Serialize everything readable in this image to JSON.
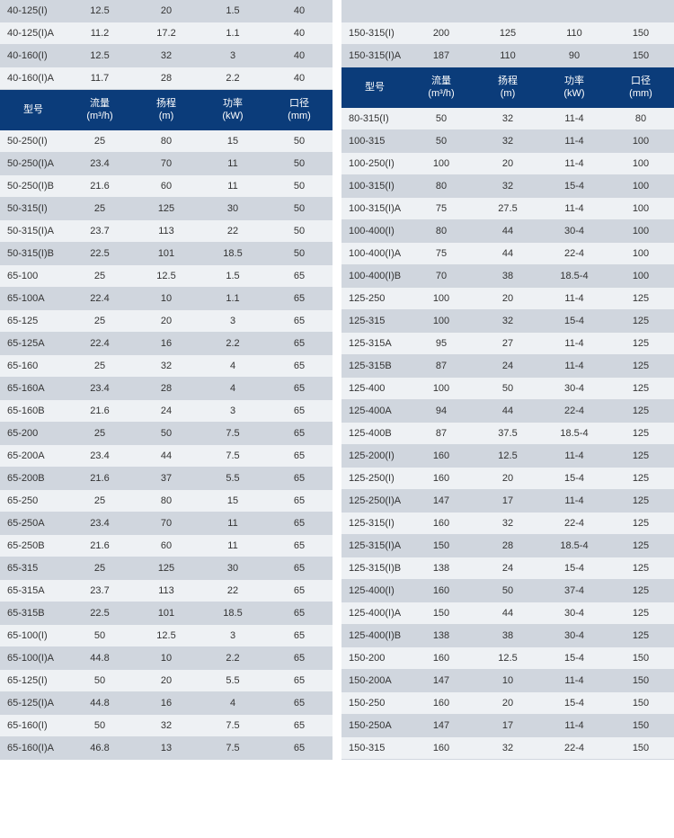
{
  "colors": {
    "header_bg": "#0b3c7a",
    "header_text": "#ffffff",
    "row_odd": "#d0d6de",
    "row_even": "#eef1f4",
    "text": "#333333",
    "border": "#d0d6de"
  },
  "columns": [
    {
      "label": "型号",
      "sub": ""
    },
    {
      "label": "流量",
      "sub": "(m³/h)"
    },
    {
      "label": "扬程",
      "sub": "(m)"
    },
    {
      "label": "功率",
      "sub": "(kW)"
    },
    {
      "label": "口径",
      "sub": "(mm)"
    }
  ],
  "left_top_rows": [
    [
      "40-125(I)",
      "12.5",
      "20",
      "1.5",
      "40"
    ],
    [
      "40-125(I)A",
      "11.2",
      "17.2",
      "1.1",
      "40"
    ],
    [
      "40-160(I)",
      "12.5",
      "32",
      "3",
      "40"
    ],
    [
      "40-160(I)A",
      "11.7",
      "28",
      "2.2",
      "40"
    ]
  ],
  "left_bottom_rows": [
    [
      "50-250(I)",
      "25",
      "80",
      "15",
      "50"
    ],
    [
      "50-250(I)A",
      "23.4",
      "70",
      "11",
      "50"
    ],
    [
      "50-250(I)B",
      "21.6",
      "60",
      "11",
      "50"
    ],
    [
      "50-315(I)",
      "25",
      "125",
      "30",
      "50"
    ],
    [
      "50-315(I)A",
      "23.7",
      "113",
      "22",
      "50"
    ],
    [
      "50-315(I)B",
      "22.5",
      "101",
      "18.5",
      "50"
    ],
    [
      "65-100",
      "25",
      "12.5",
      "1.5",
      "65"
    ],
    [
      "65-100A",
      "22.4",
      "10",
      "1.1",
      "65"
    ],
    [
      "65-125",
      "25",
      "20",
      "3",
      "65"
    ],
    [
      "65-125A",
      "22.4",
      "16",
      "2.2",
      "65"
    ],
    [
      "65-160",
      "25",
      "32",
      "4",
      "65"
    ],
    [
      "65-160A",
      "23.4",
      "28",
      "4",
      "65"
    ],
    [
      "65-160B",
      "21.6",
      "24",
      "3",
      "65"
    ],
    [
      "65-200",
      "25",
      "50",
      "7.5",
      "65"
    ],
    [
      "65-200A",
      "23.4",
      "44",
      "7.5",
      "65"
    ],
    [
      "65-200B",
      "21.6",
      "37",
      "5.5",
      "65"
    ],
    [
      "65-250",
      "25",
      "80",
      "15",
      "65"
    ],
    [
      "65-250A",
      "23.4",
      "70",
      "11",
      "65"
    ],
    [
      "65-250B",
      "21.6",
      "60",
      "11",
      "65"
    ],
    [
      "65-315",
      "25",
      "125",
      "30",
      "65"
    ],
    [
      "65-315A",
      "23.7",
      "113",
      "22",
      "65"
    ],
    [
      "65-315B",
      "22.5",
      "101",
      "18.5",
      "65"
    ],
    [
      "65-100(I)",
      "50",
      "12.5",
      "3",
      "65"
    ],
    [
      "65-100(I)A",
      "44.8",
      "10",
      "2.2",
      "65"
    ],
    [
      "65-125(I)",
      "50",
      "20",
      "5.5",
      "65"
    ],
    [
      "65-125(I)A",
      "44.8",
      "16",
      "4",
      "65"
    ],
    [
      "65-160(I)",
      "50",
      "32",
      "7.5",
      "65"
    ],
    [
      "65-160(I)A",
      "46.8",
      "13",
      "7.5",
      "65"
    ]
  ],
  "right_top_rows": [
    [
      "150-315(I)",
      "200",
      "125",
      "110",
      "150"
    ],
    [
      "150-315(I)A",
      "187",
      "110",
      "90",
      "150"
    ]
  ],
  "right_bottom_rows": [
    [
      "80-315(I)",
      "50",
      "32",
      "11-4",
      "80"
    ],
    [
      "100-315",
      "50",
      "32",
      "11-4",
      "100"
    ],
    [
      "100-250(I)",
      "100",
      "20",
      "11-4",
      "100"
    ],
    [
      "100-315(I)",
      "80",
      "32",
      "15-4",
      "100"
    ],
    [
      "100-315(I)A",
      "75",
      "27.5",
      "11-4",
      "100"
    ],
    [
      "100-400(I)",
      "80",
      "44",
      "30-4",
      "100"
    ],
    [
      "100-400(I)A",
      "75",
      "44",
      "22-4",
      "100"
    ],
    [
      "100-400(I)B",
      "70",
      "38",
      "18.5-4",
      "100"
    ],
    [
      "125-250",
      "100",
      "20",
      "11-4",
      "125"
    ],
    [
      "125-315",
      "100",
      "32",
      "15-4",
      "125"
    ],
    [
      "125-315A",
      "95",
      "27",
      "11-4",
      "125"
    ],
    [
      "125-315B",
      "87",
      "24",
      "11-4",
      "125"
    ],
    [
      "125-400",
      "100",
      "50",
      "30-4",
      "125"
    ],
    [
      "125-400A",
      "94",
      "44",
      "22-4",
      "125"
    ],
    [
      "125-400B",
      "87",
      "37.5",
      "18.5-4",
      "125"
    ],
    [
      "125-200(I)",
      "160",
      "12.5",
      "11-4",
      "125"
    ],
    [
      "125-250(I)",
      "160",
      "20",
      "15-4",
      "125"
    ],
    [
      "125-250(I)A",
      "147",
      "17",
      "11-4",
      "125"
    ],
    [
      "125-315(I)",
      "160",
      "32",
      "22-4",
      "125"
    ],
    [
      "125-315(I)A",
      "150",
      "28",
      "18.5-4",
      "125"
    ],
    [
      "125-315(I)B",
      "138",
      "24",
      "15-4",
      "125"
    ],
    [
      "125-400(I)",
      "160",
      "50",
      "37-4",
      "125"
    ],
    [
      "125-400(I)A",
      "150",
      "44",
      "30-4",
      "125"
    ],
    [
      "125-400(I)B",
      "138",
      "38",
      "30-4",
      "125"
    ],
    [
      "150-200",
      "160",
      "12.5",
      "15-4",
      "150"
    ],
    [
      "150-200A",
      "147",
      "10",
      "11-4",
      "150"
    ],
    [
      "150-250",
      "160",
      "20",
      "15-4",
      "150"
    ],
    [
      "150-250A",
      "147",
      "17",
      "11-4",
      "150"
    ],
    [
      "150-315",
      "160",
      "32",
      "22-4",
      "150"
    ]
  ]
}
